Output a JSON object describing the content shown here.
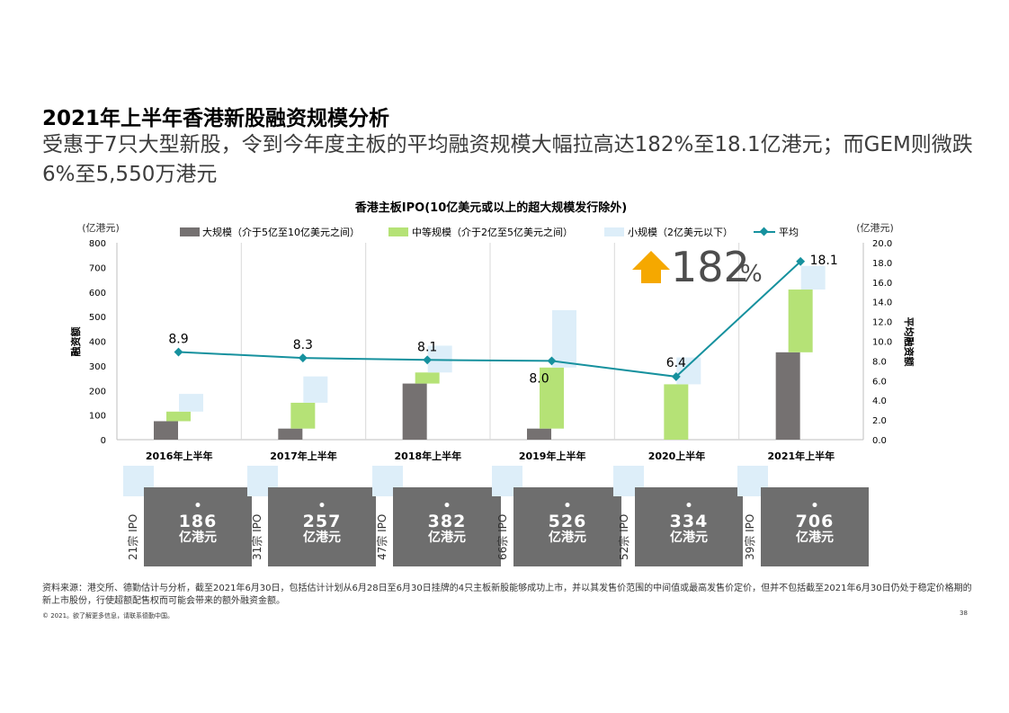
{
  "page": {
    "title": "2021年上半年香港新股融资规模分析",
    "subtitle": "受惠于7只大型新股，令到今年度主板的平均融资规模大幅拉高达182%至18.1亿港元；而GEM则微跌6%至5,550万港元",
    "footnote": "资料来源：港交所、德勤估计与分析，截至2021年6月30日，包括估计计划从6月28日至6月30日挂牌的4只主板新股能够成功上市，并以其发售价范围的中间值或最高发售价定价，但并不包括截至2021年6月30日仍处于稳定价格期的新上市股份，行使超额配售权而可能会带来的额外融资金额。",
    "copyright": "© 2021。欲了解更多信息，请联系德勤中国。",
    "page_number": "38"
  },
  "callout": {
    "value": "182",
    "unit": "%",
    "arrow_color": "#f5a800"
  },
  "ipo_summary": [
    {
      "count_label": "21宗 IPO",
      "amount": "186",
      "unit": "亿港元",
      "bullet": "•"
    },
    {
      "count_label": "31宗 IPO",
      "amount": "257",
      "unit": "亿港元",
      "bullet": "•"
    },
    {
      "count_label": "47宗 IPO",
      "amount": "382",
      "unit": "亿港元",
      "bullet": "•"
    },
    {
      "count_label": "66宗 IPO",
      "amount": "526",
      "unit": "亿港元",
      "bullet": "•"
    },
    {
      "count_label": "52宗 IPO",
      "amount": "334",
      "unit": "亿港元",
      "bullet": "•"
    },
    {
      "count_label": "39宗 IPO",
      "amount": "706",
      "unit": "亿港元",
      "bullet": "•"
    }
  ],
  "chart_data": {
    "type": "bar",
    "title": "香港主板IPO(10亿美元或以上的超大规模发行除外)",
    "categories": [
      "2016年上半年",
      "2017年上半年",
      "2018年上半年",
      "2019年上半年",
      "2020上半年",
      "2021年上半年"
    ],
    "y_left": {
      "unit": "(亿港元)",
      "label": "融资额",
      "ylim": [
        0,
        800
      ],
      "ticks": [
        "0",
        "100",
        "200",
        "300",
        "400",
        "500",
        "600",
        "700",
        "800"
      ]
    },
    "y_right": {
      "unit": "(亿港元)",
      "label": "平均融资额",
      "ylim": [
        0,
        20
      ],
      "ticks": [
        "0.0",
        "2.0",
        "4.0",
        "6.0",
        "8.0",
        "10.0",
        "12.0",
        "14.0",
        "16.0",
        "18.0",
        "20.0"
      ]
    },
    "series": [
      {
        "name": "大规模（介于5亿至10亿美元之间）",
        "kind": "bar",
        "color": "#757171",
        "values": [
          75,
          45,
          228,
          45,
          0,
          355
        ]
      },
      {
        "name": "中等规模（介于2亿至5亿美元之间）",
        "kind": "bar",
        "color": "#b5e276",
        "values": [
          39,
          105,
          45,
          248,
          225,
          255
        ]
      },
      {
        "name": "小规模（2亿美元以下）",
        "kind": "bar",
        "color": "#ddeef9",
        "values": [
          72,
          107,
          109,
          233,
          109,
          96
        ]
      },
      {
        "name": "平均",
        "kind": "line",
        "color": "#16919e",
        "axis": "right",
        "values": [
          8.9,
          8.3,
          8.1,
          8.0,
          6.4,
          18.1
        ],
        "labels": [
          "8.9",
          "8.3",
          "8.1",
          "8.0",
          "6.4",
          "18.1"
        ]
      }
    ],
    "legend_position": "top",
    "grid": "vertical category separators"
  }
}
